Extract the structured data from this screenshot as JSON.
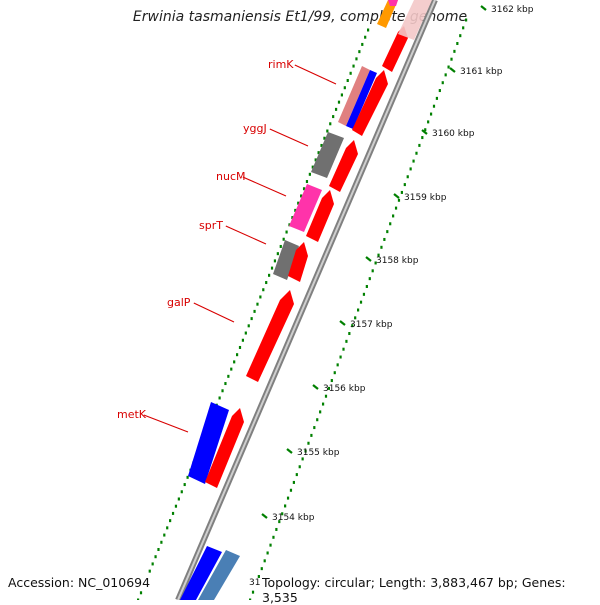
{
  "title": "Erwinia tasmaniensis Et1/99, complete genome",
  "footer": {
    "accession": "Accession: NC_010694",
    "topology": "Topology: circular; Length: 3,883,467 bp; Genes: 3,535",
    "partial_label": "31"
  },
  "colors": {
    "forward": "#ff0000",
    "reverse": "#0000ff",
    "backbone": "#a0a0a0",
    "gene_label": "#d80000",
    "tick": "#008000"
  },
  "kbp_ticks": [
    "3162 kbp",
    "3161 kbp",
    "3160 kbp",
    "3159 kbp",
    "3158 kbp",
    "3157 kbp",
    "3156 kbp",
    "3155 kbp",
    "3154 kbp"
  ],
  "gene_labels": [
    "rimK",
    "yggJ",
    "nucM",
    "sprT",
    "galP",
    "metK"
  ],
  "features": [
    {
      "label": "rimK",
      "strand": "reverse",
      "color": "#0000ff"
    },
    {
      "label": "yggJ",
      "strand": "reverse",
      "color": "#707070"
    },
    {
      "label": "nucM",
      "strand": "reverse",
      "color": "#ff3399"
    },
    {
      "label": "sprT",
      "strand": "reverse",
      "color": "#707070"
    },
    {
      "label": "galP",
      "strand": "forward",
      "color": "#ff0000"
    },
    {
      "label": "metK",
      "strand": "reverse",
      "color": "#0000ff"
    }
  ]
}
